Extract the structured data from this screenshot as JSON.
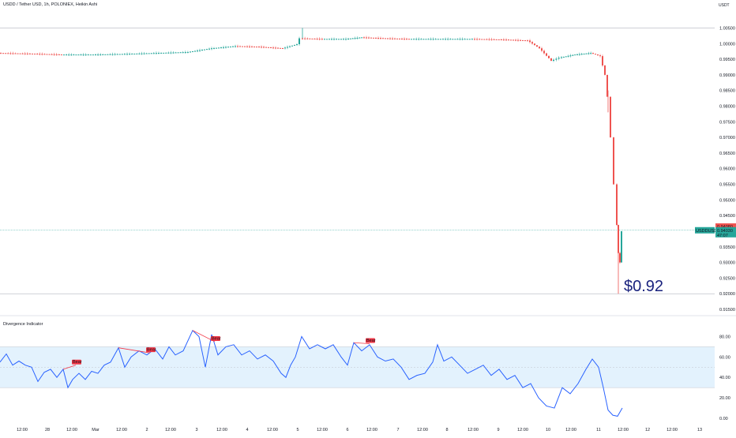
{
  "header": {
    "title": "USDD / Tether USD, 1h, POLONIEX, Heikin Ashi",
    "currency": "USDT"
  },
  "indicator": {
    "title": "Divergence Indicator"
  },
  "annotation": {
    "price_text": "$0.92"
  },
  "price_tags": {
    "top_value": "0.94080",
    "symbol_label": "USDDUSDT",
    "symbol_value": "0.94030",
    "countdown": "47:07"
  },
  "colors": {
    "up": "#26a69a",
    "down": "#ef5350",
    "line": "#2962ff",
    "band": "#e3f2fd",
    "bear": "#f23645"
  },
  "chart_data": [
    {
      "type": "candlestick",
      "title": "USDD / Tether USD, 1h, POLONIEX, Heikin Ashi",
      "y_unit": "USDT",
      "ylim": [
        0.915,
        1.009
      ],
      "y_ticks": [
        "1.00500",
        "1.00000",
        "0.99500",
        "0.99000",
        "0.98500",
        "0.98000",
        "0.97500",
        "0.97000",
        "0.96500",
        "0.96000",
        "0.95500",
        "0.95000",
        "0.94500",
        "0.94000",
        "0.93500",
        "0.93000",
        "0.92500",
        "0.92000",
        "0.91500"
      ],
      "x_ticks": [
        "12:00",
        "28",
        "12:00",
        "Mar",
        "12:00",
        "2",
        "12:00",
        "3",
        "12:00",
        "4",
        "12:00",
        "5",
        "12:00",
        "6",
        "12:00",
        "7",
        "12:00",
        "8",
        "12:00",
        "9",
        "12:00",
        "10",
        "12:00",
        "11",
        "12:00",
        "12",
        "12:00",
        "13"
      ],
      "horizontal_levels": [
        1.005,
        0.9403,
        0.92
      ],
      "price_path": [
        {
          "x": 0,
          "y": 0.997
        },
        {
          "x": 40,
          "y": 0.9968
        },
        {
          "x": 80,
          "y": 0.9965
        },
        {
          "x": 120,
          "y": 0.9965
        },
        {
          "x": 160,
          "y": 0.9967
        },
        {
          "x": 200,
          "y": 0.997
        },
        {
          "x": 240,
          "y": 0.9973
        },
        {
          "x": 270,
          "y": 0.9985
        },
        {
          "x": 300,
          "y": 0.9992
        },
        {
          "x": 330,
          "y": 0.999
        },
        {
          "x": 360,
          "y": 0.9985
        },
        {
          "x": 378,
          "y": 0.9998
        },
        {
          "x": 382,
          "y": 1.0017
        },
        {
          "x": 410,
          "y": 1.0015
        },
        {
          "x": 440,
          "y": 1.0015
        },
        {
          "x": 460,
          "y": 1.002
        },
        {
          "x": 490,
          "y": 1.0017
        },
        {
          "x": 520,
          "y": 1.0015
        },
        {
          "x": 560,
          "y": 1.0015
        },
        {
          "x": 600,
          "y": 1.0015
        },
        {
          "x": 640,
          "y": 1.0013
        },
        {
          "x": 670,
          "y": 1.001
        },
        {
          "x": 685,
          "y": 0.9985
        },
        {
          "x": 700,
          "y": 0.9945
        },
        {
          "x": 710,
          "y": 0.9955
        },
        {
          "x": 730,
          "y": 0.9965
        },
        {
          "x": 750,
          "y": 0.997
        },
        {
          "x": 762,
          "y": 0.996
        },
        {
          "x": 768,
          "y": 0.99
        },
        {
          "x": 772,
          "y": 0.983
        },
        {
          "x": 776,
          "y": 0.97
        },
        {
          "x": 780,
          "y": 0.955
        },
        {
          "x": 782,
          "y": 0.942
        },
        {
          "x": 784,
          "y": 0.933
        },
        {
          "x": 786,
          "y": 0.93
        },
        {
          "x": 788,
          "y": 0.94
        }
      ],
      "last_price": 0.9403,
      "annotation": "$0.92"
    },
    {
      "type": "line",
      "title": "Divergence Indicator",
      "ylim": [
        0,
        85
      ],
      "y_ticks": [
        "80.00",
        "60.00",
        "40.00",
        "20.00",
        "0.00"
      ],
      "band": [
        30,
        70
      ],
      "midline": 50,
      "series": [
        {
          "points": [
            {
              "x": 0,
              "y": 55
            },
            {
              "x": 8,
              "y": 63
            },
            {
              "x": 16,
              "y": 52
            },
            {
              "x": 24,
              "y": 56
            },
            {
              "x": 32,
              "y": 52
            },
            {
              "x": 40,
              "y": 50
            },
            {
              "x": 48,
              "y": 36
            },
            {
              "x": 56,
              "y": 45
            },
            {
              "x": 64,
              "y": 48
            },
            {
              "x": 72,
              "y": 40
            },
            {
              "x": 80,
              "y": 48
            },
            {
              "x": 86,
              "y": 30
            },
            {
              "x": 92,
              "y": 38
            },
            {
              "x": 100,
              "y": 44
            },
            {
              "x": 108,
              "y": 38
            },
            {
              "x": 116,
              "y": 46
            },
            {
              "x": 124,
              "y": 44
            },
            {
              "x": 132,
              "y": 52
            },
            {
              "x": 140,
              "y": 55
            },
            {
              "x": 150,
              "y": 69
            },
            {
              "x": 158,
              "y": 50
            },
            {
              "x": 166,
              "y": 60
            },
            {
              "x": 176,
              "y": 66
            },
            {
              "x": 186,
              "y": 62
            },
            {
              "x": 196,
              "y": 68
            },
            {
              "x": 206,
              "y": 58
            },
            {
              "x": 214,
              "y": 70
            },
            {
              "x": 222,
              "y": 62
            },
            {
              "x": 232,
              "y": 66
            },
            {
              "x": 244,
              "y": 86
            },
            {
              "x": 252,
              "y": 80
            },
            {
              "x": 260,
              "y": 50
            },
            {
              "x": 268,
              "y": 82
            },
            {
              "x": 276,
              "y": 62
            },
            {
              "x": 286,
              "y": 70
            },
            {
              "x": 296,
              "y": 72
            },
            {
              "x": 306,
              "y": 62
            },
            {
              "x": 316,
              "y": 66
            },
            {
              "x": 326,
              "y": 58
            },
            {
              "x": 336,
              "y": 62
            },
            {
              "x": 346,
              "y": 56
            },
            {
              "x": 356,
              "y": 44
            },
            {
              "x": 362,
              "y": 40
            },
            {
              "x": 368,
              "y": 52
            },
            {
              "x": 374,
              "y": 60
            },
            {
              "x": 382,
              "y": 80
            },
            {
              "x": 392,
              "y": 68
            },
            {
              "x": 402,
              "y": 72
            },
            {
              "x": 412,
              "y": 68
            },
            {
              "x": 422,
              "y": 72
            },
            {
              "x": 432,
              "y": 60
            },
            {
              "x": 440,
              "y": 52
            },
            {
              "x": 448,
              "y": 74
            },
            {
              "x": 458,
              "y": 66
            },
            {
              "x": 468,
              "y": 72
            },
            {
              "x": 478,
              "y": 60
            },
            {
              "x": 488,
              "y": 56
            },
            {
              "x": 498,
              "y": 58
            },
            {
              "x": 508,
              "y": 50
            },
            {
              "x": 518,
              "y": 38
            },
            {
              "x": 528,
              "y": 42
            },
            {
              "x": 538,
              "y": 44
            },
            {
              "x": 548,
              "y": 55
            },
            {
              "x": 554,
              "y": 72
            },
            {
              "x": 562,
              "y": 56
            },
            {
              "x": 572,
              "y": 60
            },
            {
              "x": 582,
              "y": 52
            },
            {
              "x": 592,
              "y": 44
            },
            {
              "x": 602,
              "y": 48
            },
            {
              "x": 612,
              "y": 52
            },
            {
              "x": 622,
              "y": 42
            },
            {
              "x": 632,
              "y": 48
            },
            {
              "x": 642,
              "y": 38
            },
            {
              "x": 652,
              "y": 42
            },
            {
              "x": 662,
              "y": 30
            },
            {
              "x": 672,
              "y": 34
            },
            {
              "x": 682,
              "y": 20
            },
            {
              "x": 692,
              "y": 12
            },
            {
              "x": 702,
              "y": 10
            },
            {
              "x": 712,
              "y": 30
            },
            {
              "x": 722,
              "y": 24
            },
            {
              "x": 732,
              "y": 34
            },
            {
              "x": 742,
              "y": 48
            },
            {
              "x": 750,
              "y": 58
            },
            {
              "x": 758,
              "y": 50
            },
            {
              "x": 764,
              "y": 30
            },
            {
              "x": 770,
              "y": 8
            },
            {
              "x": 776,
              "y": 3
            },
            {
              "x": 782,
              "y": 2
            },
            {
              "x": 788,
              "y": 10
            }
          ]
        }
      ],
      "divergences": [
        {
          "label": "Bear",
          "x1": 80,
          "y1": 48,
          "x2": 96,
          "y2": 52
        },
        {
          "label": "Bear",
          "x1": 150,
          "y1": 69,
          "x2": 190,
          "y2": 64
        },
        {
          "label": "Bear",
          "x1": 244,
          "y1": 86,
          "x2": 272,
          "y2": 75
        },
        {
          "label": "Bear",
          "x1": 448,
          "y1": 74,
          "x2": 468,
          "y2": 73
        }
      ]
    }
  ]
}
